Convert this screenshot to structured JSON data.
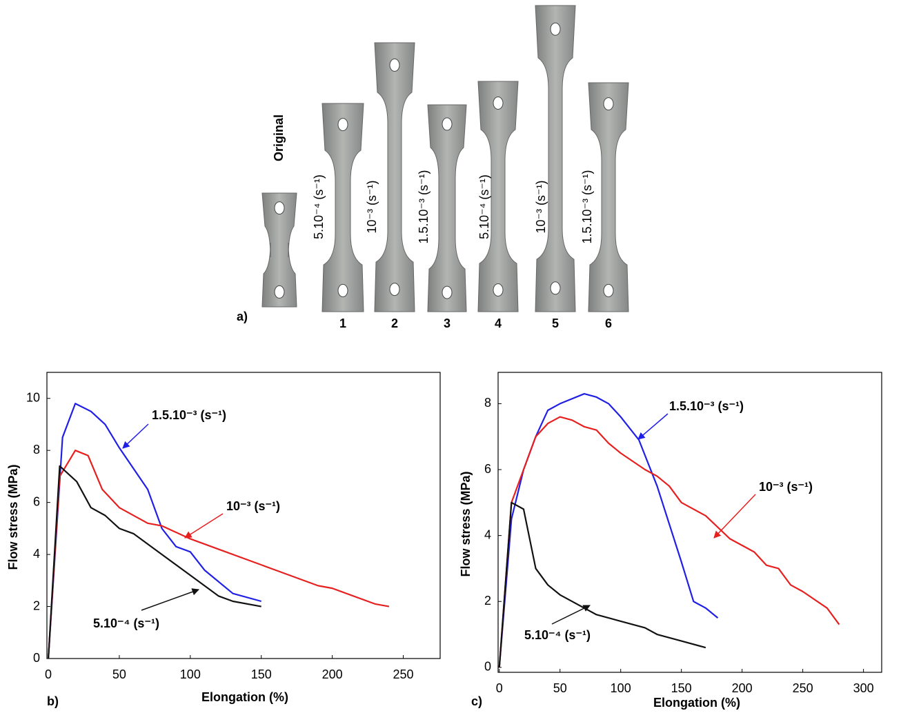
{
  "panel_a": {
    "label": "a)",
    "original": "Original",
    "specimens": [
      {
        "number": "1",
        "rate": "5.10⁻⁴ (s⁻¹)"
      },
      {
        "number": "2",
        "rate": "10⁻³ (s⁻¹)"
      },
      {
        "number": "3",
        "rate": "1.5.10⁻³ (s⁻¹)"
      },
      {
        "number": "4",
        "rate": "5.10⁻⁴ (s⁻¹)"
      },
      {
        "number": "5",
        "rate": "10⁻³ (s⁻¹)"
      },
      {
        "number": "6",
        "rate": "1.5.10⁻³ (s⁻¹)"
      }
    ]
  },
  "chart_data": [
    {
      "type": "line",
      "panel_label": "b)",
      "x_label": "Elongation (%)",
      "y_label": "Flow stress (MPa)",
      "xlim": [
        -1,
        276
      ],
      "ylim": [
        0,
        11
      ],
      "xticks": [
        0,
        50,
        100,
        150,
        200,
        250
      ],
      "yticks": [
        0,
        2,
        4,
        6,
        8,
        10
      ],
      "series": [
        {
          "name": "1.5.10⁻³ (s⁻¹)",
          "color": "#1f1fe6",
          "x": [
            0,
            10,
            19,
            30,
            40,
            50,
            70,
            80,
            90,
            100,
            110,
            130,
            150
          ],
          "values": [
            0,
            8.5,
            9.8,
            9.5,
            9.0,
            8.1,
            6.5,
            5.0,
            4.3,
            4.1,
            3.4,
            2.5,
            2.2
          ]
        },
        {
          "name": "10⁻³ (s⁻¹)",
          "color": "#e61f1f",
          "x": [
            0,
            8,
            19,
            28,
            38,
            50,
            70,
            80,
            100,
            120,
            140,
            160,
            190,
            200,
            230,
            240
          ],
          "values": [
            0,
            7.0,
            8.0,
            7.8,
            6.5,
            5.8,
            5.2,
            5.1,
            4.6,
            4.2,
            3.8,
            3.4,
            2.8,
            2.7,
            2.1,
            2.0
          ]
        },
        {
          "name": "5.10⁻⁴ (s⁻¹)",
          "color": "#111111",
          "x": [
            0,
            8,
            20,
            30,
            40,
            50,
            60,
            80,
            100,
            120,
            130,
            150
          ],
          "values": [
            0,
            7.4,
            6.8,
            5.8,
            5.5,
            5.0,
            4.8,
            4.0,
            3.2,
            2.4,
            2.2,
            2.0
          ]
        }
      ]
    },
    {
      "type": "line",
      "panel_label": "c)",
      "x_label": "Elongation (%)",
      "y_label": "Flow stress (MPa)",
      "xlim": [
        -1,
        315
      ],
      "ylim": [
        -0.15,
        8.95
      ],
      "xticks": [
        0,
        50,
        100,
        150,
        200,
        250,
        300
      ],
      "yticks": [
        0,
        2,
        4,
        6,
        8
      ],
      "series": [
        {
          "name": "1.5.10⁻³ (s⁻¹)",
          "color": "#1f1fe6",
          "x": [
            0,
            10,
            20,
            30,
            40,
            50,
            70,
            80,
            90,
            100,
            115,
            130,
            150,
            160,
            170,
            180
          ],
          "values": [
            0,
            4.5,
            6.0,
            7.0,
            7.8,
            8.0,
            8.3,
            8.2,
            8.0,
            7.6,
            6.9,
            5.5,
            3.2,
            2.0,
            1.8,
            1.5
          ]
        },
        {
          "name": "10⁻³ (s⁻¹)",
          "color": "#e61f1f",
          "x": [
            0,
            10,
            20,
            30,
            40,
            50,
            60,
            70,
            80,
            90,
            100,
            120,
            130,
            140,
            150,
            170,
            190,
            210,
            220,
            230,
            240,
            250,
            270,
            280
          ],
          "values": [
            0,
            5.0,
            6.0,
            7.0,
            7.4,
            7.6,
            7.5,
            7.3,
            7.2,
            6.8,
            6.5,
            6.0,
            5.8,
            5.5,
            5.0,
            4.6,
            3.9,
            3.5,
            3.1,
            3.0,
            2.5,
            2.3,
            1.8,
            1.3
          ]
        },
        {
          "name": "5.10⁻⁴ (s⁻¹)",
          "color": "#111111",
          "x": [
            0,
            10,
            20,
            30,
            40,
            50,
            80,
            100,
            120,
            130,
            150,
            170
          ],
          "values": [
            0,
            5.0,
            4.8,
            3.0,
            2.5,
            2.2,
            1.6,
            1.4,
            1.2,
            1.0,
            0.8,
            0.6
          ]
        }
      ]
    }
  ]
}
